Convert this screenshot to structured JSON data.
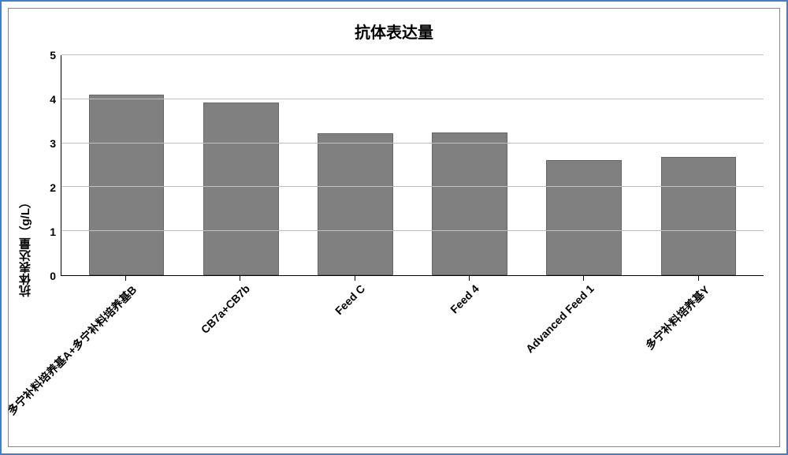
{
  "chart": {
    "type": "bar",
    "title": "抗体表达量",
    "title_fontsize": 20,
    "ylabel": "抗体表达量（g/L）",
    "label_fontsize": 15,
    "ylim": [
      0,
      5
    ],
    "yticks": [
      0,
      1,
      2,
      3,
      4,
      5
    ],
    "grid_color": "#bfbfbf",
    "axis_color": "#000000",
    "background_color": "#ffffff",
    "bar_color": "#808080",
    "bar_border_color": "#666666",
    "bar_width": 0.66,
    "categories": [
      "多宁补料培养基A+多宁补料培养基B",
      "CB7a+CB7b",
      "Feed C",
      "Feed 4",
      "Advanced Feed 1",
      "多宁补料培养基Y"
    ],
    "values": [
      4.1,
      3.92,
      3.22,
      3.25,
      2.62,
      2.68
    ],
    "xlabel_rotation_deg": 45,
    "xlabel_fontsize": 14,
    "tick_fontsize": 14,
    "outer_frame_color": "#4a7cc4",
    "inner_frame_color": "#888888"
  }
}
